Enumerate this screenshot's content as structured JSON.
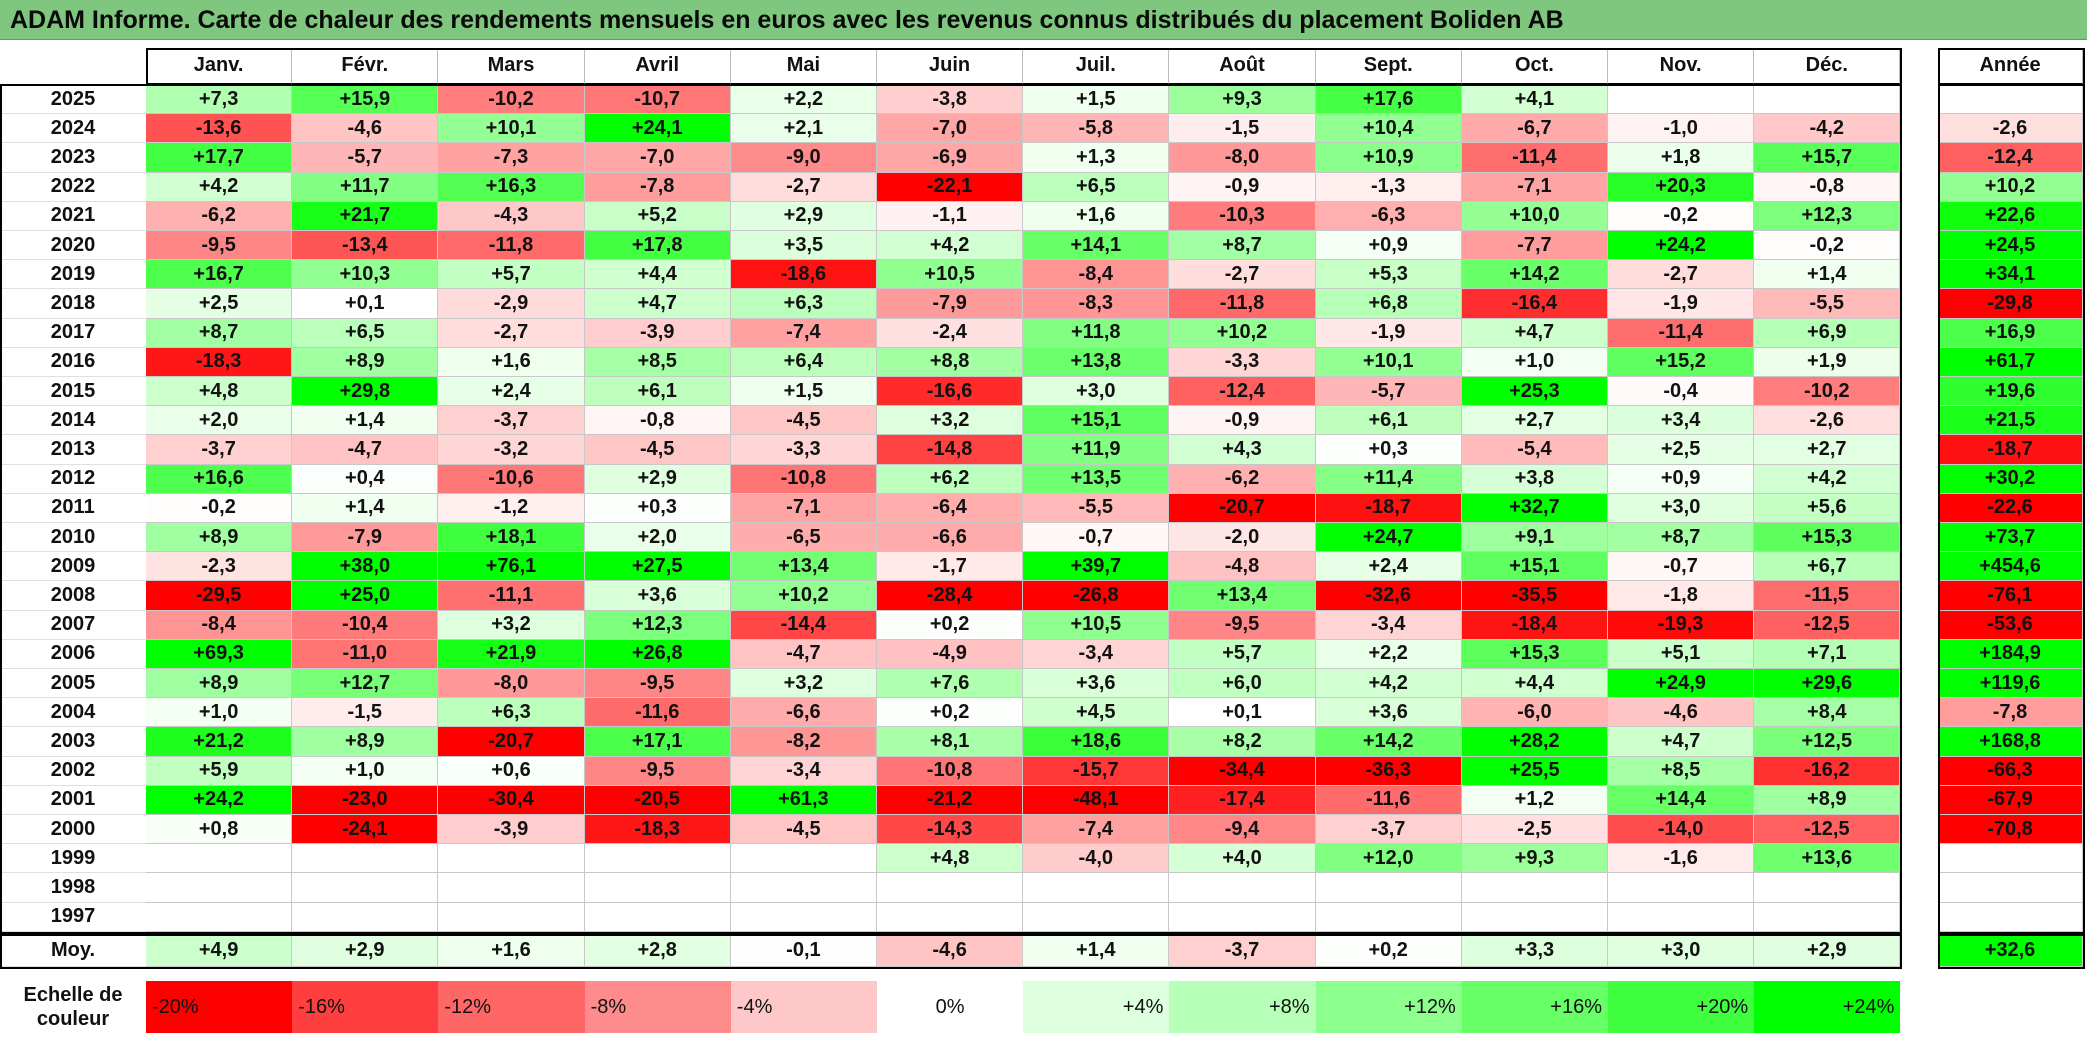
{
  "title": "ADAM Informe. Carte de chaleur des rendements mensuels en euros avec les revenus connus distribués du placement Boliden AB",
  "chart_data": {
    "type": "heatmap",
    "title": "ADAM Informe. Carte de chaleur des rendements mensuels en euros avec les revenus connus distribués du placement Boliden AB",
    "months": [
      "Janv.",
      "Févr.",
      "Mars",
      "Avril",
      "Mai",
      "Juin",
      "Juil.",
      "Août",
      "Sept.",
      "Oct.",
      "Nov.",
      "Déc."
    ],
    "annual_label": "Année",
    "average_label": "Moy.",
    "rows": [
      {
        "year": "2025",
        "values": [
          "+7,3",
          "+15,9",
          "-10,2",
          "-10,7",
          "+2,2",
          "-3,8",
          "+1,5",
          "+9,3",
          "+17,6",
          "+4,1",
          "",
          ""
        ],
        "annual": ""
      },
      {
        "year": "2024",
        "values": [
          "-13,6",
          "-4,6",
          "+10,1",
          "+24,1",
          "+2,1",
          "-7,0",
          "-5,8",
          "-1,5",
          "+10,4",
          "-6,7",
          "-1,0",
          "-4,2"
        ],
        "annual": "-2,6"
      },
      {
        "year": "2023",
        "values": [
          "+17,7",
          "-5,7",
          "-7,3",
          "-7,0",
          "-9,0",
          "-6,9",
          "+1,3",
          "-8,0",
          "+10,9",
          "-11,4",
          "+1,8",
          "+15,7"
        ],
        "annual": "-12,4"
      },
      {
        "year": "2022",
        "values": [
          "+4,2",
          "+11,7",
          "+16,3",
          "-7,8",
          "-2,7",
          "-22,1",
          "+6,5",
          "-0,9",
          "-1,3",
          "-7,1",
          "+20,3",
          "-0,8"
        ],
        "annual": "+10,2"
      },
      {
        "year": "2021",
        "values": [
          "-6,2",
          "+21,7",
          "-4,3",
          "+5,2",
          "+2,9",
          "-1,1",
          "+1,6",
          "-10,3",
          "-6,3",
          "+10,0",
          "-0,2",
          "+12,3"
        ],
        "annual": "+22,6"
      },
      {
        "year": "2020",
        "values": [
          "-9,5",
          "-13,4",
          "-11,8",
          "+17,8",
          "+3,5",
          "+4,2",
          "+14,1",
          "+8,7",
          "+0,9",
          "-7,7",
          "+24,2",
          "-0,2"
        ],
        "annual": "+24,5"
      },
      {
        "year": "2019",
        "values": [
          "+16,7",
          "+10,3",
          "+5,7",
          "+4,4",
          "-18,6",
          "+10,5",
          "-8,4",
          "-2,7",
          "+5,3",
          "+14,2",
          "-2,7",
          "+1,4"
        ],
        "annual": "+34,1"
      },
      {
        "year": "2018",
        "values": [
          "+2,5",
          "+0,1",
          "-2,9",
          "+4,7",
          "+6,3",
          "-7,9",
          "-8,3",
          "-11,8",
          "+6,8",
          "-16,4",
          "-1,9",
          "-5,5"
        ],
        "annual": "-29,8"
      },
      {
        "year": "2017",
        "values": [
          "+8,7",
          "+6,5",
          "-2,7",
          "-3,9",
          "-7,4",
          "-2,4",
          "+11,8",
          "+10,2",
          "-1,9",
          "+4,7",
          "-11,4",
          "+6,9"
        ],
        "annual": "+16,9"
      },
      {
        "year": "2016",
        "values": [
          "-18,3",
          "+8,9",
          "+1,6",
          "+8,5",
          "+6,4",
          "+8,8",
          "+13,8",
          "-3,3",
          "+10,1",
          "+1,0",
          "+15,2",
          "+1,9"
        ],
        "annual": "+61,7"
      },
      {
        "year": "2015",
        "values": [
          "+4,8",
          "+29,8",
          "+2,4",
          "+6,1",
          "+1,5",
          "-16,6",
          "+3,0",
          "-12,4",
          "-5,7",
          "+25,3",
          "-0,4",
          "-10,2"
        ],
        "annual": "+19,6"
      },
      {
        "year": "2014",
        "values": [
          "+2,0",
          "+1,4",
          "-3,7",
          "-0,8",
          "-4,5",
          "+3,2",
          "+15,1",
          "-0,9",
          "+6,1",
          "+2,7",
          "+3,4",
          "-2,6"
        ],
        "annual": "+21,5"
      },
      {
        "year": "2013",
        "values": [
          "-3,7",
          "-4,7",
          "-3,2",
          "-4,5",
          "-3,3",
          "-14,8",
          "+11,9",
          "+4,3",
          "+0,3",
          "-5,4",
          "+2,5",
          "+2,7"
        ],
        "annual": "-18,7"
      },
      {
        "year": "2012",
        "values": [
          "+16,6",
          "+0,4",
          "-10,6",
          "+2,9",
          "-10,8",
          "+6,2",
          "+13,5",
          "-6,2",
          "+11,4",
          "+3,8",
          "+0,9",
          "+4,2"
        ],
        "annual": "+30,2"
      },
      {
        "year": "2011",
        "values": [
          "-0,2",
          "+1,4",
          "-1,2",
          "+0,3",
          "-7,1",
          "-6,4",
          "-5,5",
          "-20,7",
          "-18,7",
          "+32,7",
          "+3,0",
          "+5,6"
        ],
        "annual": "-22,6"
      },
      {
        "year": "2010",
        "values": [
          "+8,9",
          "-7,9",
          "+18,1",
          "+2,0",
          "-6,5",
          "-6,6",
          "-0,7",
          "-2,0",
          "+24,7",
          "+9,1",
          "+8,7",
          "+15,3"
        ],
        "annual": "+73,7"
      },
      {
        "year": "2009",
        "values": [
          "-2,3",
          "+38,0",
          "+76,1",
          "+27,5",
          "+13,4",
          "-1,7",
          "+39,7",
          "-4,8",
          "+2,4",
          "+15,1",
          "-0,7",
          "+6,7"
        ],
        "annual": "+454,6"
      },
      {
        "year": "2008",
        "values": [
          "-29,5",
          "+25,0",
          "-11,1",
          "+3,6",
          "+10,2",
          "-28,4",
          "-26,8",
          "+13,4",
          "-32,6",
          "-35,5",
          "-1,8",
          "-11,5"
        ],
        "annual": "-76,1"
      },
      {
        "year": "2007",
        "values": [
          "-8,4",
          "-10,4",
          "+3,2",
          "+12,3",
          "-14,4",
          "+0,2",
          "+10,5",
          "-9,5",
          "-3,4",
          "-18,4",
          "-19,3",
          "-12,5"
        ],
        "annual": "-53,6"
      },
      {
        "year": "2006",
        "values": [
          "+69,3",
          "-11,0",
          "+21,9",
          "+26,8",
          "-4,7",
          "-4,9",
          "-3,4",
          "+5,7",
          "+2,2",
          "+15,3",
          "+5,1",
          "+7,1"
        ],
        "annual": "+184,9"
      },
      {
        "year": "2005",
        "values": [
          "+8,9",
          "+12,7",
          "-8,0",
          "-9,5",
          "+3,2",
          "+7,6",
          "+3,6",
          "+6,0",
          "+4,2",
          "+4,4",
          "+24,9",
          "+29,6"
        ],
        "annual": "+119,6"
      },
      {
        "year": "2004",
        "values": [
          "+1,0",
          "-1,5",
          "+6,3",
          "-11,6",
          "-6,6",
          "+0,2",
          "+4,5",
          "+0,1",
          "+3,6",
          "-6,0",
          "-4,6",
          "+8,4"
        ],
        "annual": "-7,8"
      },
      {
        "year": "2003",
        "values": [
          "+21,2",
          "+8,9",
          "-20,7",
          "+17,1",
          "-8,2",
          "+8,1",
          "+18,6",
          "+8,2",
          "+14,2",
          "+28,2",
          "+4,7",
          "+12,5"
        ],
        "annual": "+168,8"
      },
      {
        "year": "2002",
        "values": [
          "+5,9",
          "+1,0",
          "+0,6",
          "-9,5",
          "-3,4",
          "-10,8",
          "-15,7",
          "-34,4",
          "-36,3",
          "+25,5",
          "+8,5",
          "-16,2"
        ],
        "annual": "-66,3"
      },
      {
        "year": "2001",
        "values": [
          "+24,2",
          "-23,0",
          "-30,4",
          "-20,5",
          "+61,3",
          "-21,2",
          "-48,1",
          "-17,4",
          "-11,6",
          "+1,2",
          "+14,4",
          "+8,9"
        ],
        "annual": "-67,9"
      },
      {
        "year": "2000",
        "values": [
          "+0,8",
          "-24,1",
          "-3,9",
          "-18,3",
          "-4,5",
          "-14,3",
          "-7,4",
          "-9,4",
          "-3,7",
          "-2,5",
          "-14,0",
          "-12,5"
        ],
        "annual": "-70,8"
      },
      {
        "year": "1999",
        "values": [
          "",
          "",
          "",
          "",
          "",
          "+4,8",
          "-4,0",
          "+4,0",
          "+12,0",
          "+9,3",
          "-1,6",
          "+13,6"
        ],
        "annual": ""
      },
      {
        "year": "1998",
        "values": [
          "",
          "",
          "",
          "",
          "",
          "",
          "",
          "",
          "",
          "",
          "",
          ""
        ],
        "annual": ""
      },
      {
        "year": "1997",
        "values": [
          "",
          "",
          "",
          "",
          "",
          "",
          "",
          "",
          "",
          "",
          "",
          ""
        ],
        "annual": ""
      }
    ],
    "average": {
      "values": [
        "+4,9",
        "+2,9",
        "+1,6",
        "+2,8",
        "-0,1",
        "-4,6",
        "+1,4",
        "-3,7",
        "+0,2",
        "+3,3",
        "+3,0",
        "+2,9"
      ],
      "annual": "+32,6"
    },
    "color_scale": {
      "label": "Echelle de couleur",
      "stops": [
        "-20%",
        "-16%",
        "-12%",
        "-8%",
        "-4%",
        "0%",
        "+4%",
        "+8%",
        "+12%",
        "+16%",
        "+20%",
        "+24%"
      ],
      "colors": [
        "#ff0000",
        "#ff3f3f",
        "#ff6666",
        "#ff8c8c",
        "#ffc8c8",
        "#ffffff",
        "#ddffdd",
        "#b6ffb6",
        "#8cff8c",
        "#66ff66",
        "#3fff3f",
        "#00ff00"
      ],
      "negative_color": "#ff0000",
      "positive_color": "#00ff00",
      "neutral_color": "#ffffff",
      "monthly_range": [
        -20,
        24
      ],
      "annual_range": [
        -20,
        24
      ]
    }
  }
}
